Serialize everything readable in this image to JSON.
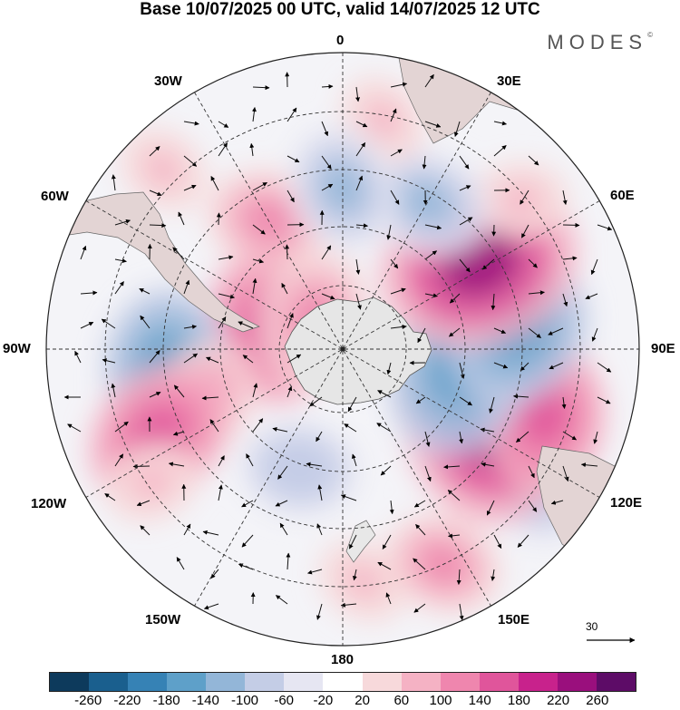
{
  "title": "Base 10/07/2025 00 UTC, valid 14/07/2025 12 UTC",
  "logo": "MODES",
  "logo_mark": "©",
  "longitude_labels": {
    "lon_0": "0",
    "lon_30e": "30E",
    "lon_60e": "60E",
    "lon_90e": "90E",
    "lon_120e": "120E",
    "lon_150e": "150E",
    "lon_180": "180",
    "lon_150w": "150W",
    "lon_120w": "120W",
    "lon_90w": "90W",
    "lon_60w": "60W",
    "lon_30w": "30W"
  },
  "vector_reference": {
    "value": "30"
  },
  "colorbar": {
    "ticks": [
      "-260",
      "-220",
      "-180",
      "-140",
      "-100",
      "-60",
      "-20",
      "20",
      "60",
      "100",
      "140",
      "180",
      "220",
      "260"
    ],
    "colors": [
      "#0d3a5c",
      "#1a5f8e",
      "#3682b5",
      "#5ea0c9",
      "#93b6d8",
      "#c4cde6",
      "#e6e6f2",
      "#ffffff",
      "#f7d9db",
      "#f5b2c4",
      "#ef86ae",
      "#e0559b",
      "#c8228c",
      "#9a0f7d",
      "#5d0c67"
    ]
  },
  "anomaly_regions": [
    {
      "lon": 30,
      "colat": 35,
      "value": 110
    },
    {
      "lon": 45,
      "colat": 60,
      "value": 60
    },
    {
      "lon": 75,
      "colat": 18,
      "value": 150
    },
    {
      "lon": 95,
      "colat": 42,
      "value": -150
    },
    {
      "lon": 110,
      "colat": 35,
      "value": 100
    },
    {
      "lon": 115,
      "colat": 48,
      "value": 150
    },
    {
      "lon": 125,
      "colat": 55,
      "value": 60
    },
    {
      "lon": 160,
      "colat": 30,
      "value": -100
    },
    {
      "lon": 185,
      "colat": 55,
      "value": 60
    },
    {
      "lon": -155,
      "colat": 56,
      "value": 100
    },
    {
      "lon": -125,
      "colat": 55,
      "value": -110
    },
    {
      "lon": -118,
      "colat": 38,
      "value": 220
    },
    {
      "lon": -108,
      "colat": 50,
      "value": 150
    },
    {
      "lon": -100,
      "colat": 28,
      "value": -180
    },
    {
      "lon": -85,
      "colat": 42,
      "value": -150
    },
    {
      "lon": -58,
      "colat": 38,
      "value": 220
    },
    {
      "lon": -50,
      "colat": 55,
      "value": 60
    },
    {
      "lon": -30,
      "colat": 40,
      "value": -110
    },
    {
      "lon": -10,
      "colat": 55,
      "value": 60
    },
    {
      "lon": 0,
      "colat": 38,
      "value": -110
    },
    {
      "lon": 42,
      "colat": 10,
      "value": 120
    }
  ]
}
